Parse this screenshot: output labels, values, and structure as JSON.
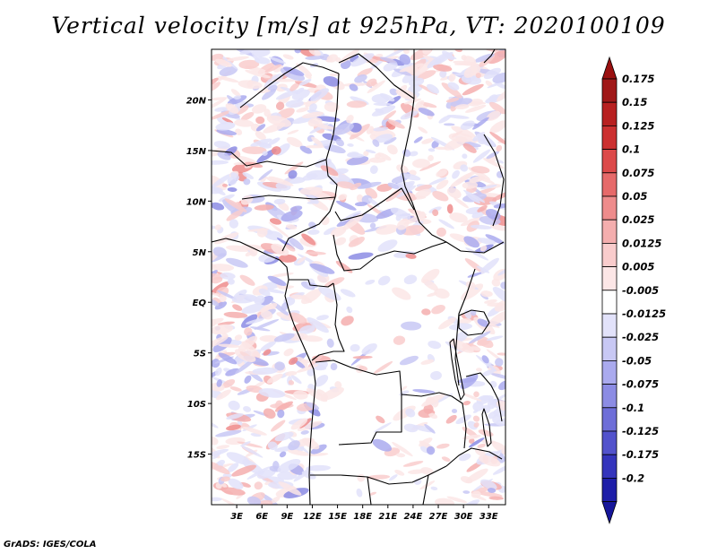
{
  "title": "Vertical velocity [m/s] at 925hPa, VT: 2020100109",
  "footer": "GrADS: IGES/COLA",
  "map": {
    "lon_range": [
      0,
      35
    ],
    "lat_range": [
      -20,
      25
    ],
    "lat_ticks": [
      {
        "lat": 20,
        "label": "20N"
      },
      {
        "lat": 15,
        "label": "15N"
      },
      {
        "lat": 10,
        "label": "10N"
      },
      {
        "lat": 5,
        "label": "5N"
      },
      {
        "lat": 0,
        "label": "EQ"
      },
      {
        "lat": -5,
        "label": "5S"
      },
      {
        "lat": -10,
        "label": "10S"
      },
      {
        "lat": -15,
        "label": "15S"
      }
    ],
    "lon_ticks": [
      {
        "lon": 3,
        "label": "3E"
      },
      {
        "lon": 6,
        "label": "6E"
      },
      {
        "lon": 9,
        "label": "9E"
      },
      {
        "lon": 12,
        "label": "12E"
      },
      {
        "lon": 15,
        "label": "15E"
      },
      {
        "lon": 18,
        "label": "18E"
      },
      {
        "lon": 21,
        "label": "21E"
      },
      {
        "lon": 24,
        "label": "24E"
      },
      {
        "lon": 27,
        "label": "27E"
      },
      {
        "lon": 30,
        "label": "30E"
      },
      {
        "lon": 33,
        "label": "33E"
      }
    ]
  },
  "colorbar": {
    "levels": [
      {
        "label": "0.175",
        "color": "#a01818"
      },
      {
        "label": "0.15",
        "color": "#b82020"
      },
      {
        "label": "0.125",
        "color": "#cc3030"
      },
      {
        "label": "0.1",
        "color": "#dc4a4a"
      },
      {
        "label": "0.075",
        "color": "#e66a6a"
      },
      {
        "label": "0.05",
        "color": "#ee8c8c"
      },
      {
        "label": "0.025",
        "color": "#f4aeae"
      },
      {
        "label": "0.0125",
        "color": "#f9cccc"
      },
      {
        "label": "0.005",
        "color": "#fce6e6"
      },
      {
        "label": "-0.005",
        "color": "#ffffff"
      },
      {
        "label": "-0.0125",
        "color": "#e2e2fa"
      },
      {
        "label": "-0.025",
        "color": "#c8c8f4"
      },
      {
        "label": "-0.05",
        "color": "#aaaaee"
      },
      {
        "label": "-0.075",
        "color": "#8c8ce4"
      },
      {
        "label": "-0.1",
        "color": "#6e6ed8"
      },
      {
        "label": "-0.125",
        "color": "#5252cc"
      },
      {
        "label": "-0.175",
        "color": "#3434bc"
      },
      {
        "label": "-0.2",
        "color": "#1e1ea8"
      }
    ],
    "top_cap_color": "#9a1010",
    "bottom_cap_color": "#16169a"
  },
  "colors": {
    "border": "#000000",
    "red_field": "#f2a0a0",
    "blue_field": "#a8a8ee"
  }
}
